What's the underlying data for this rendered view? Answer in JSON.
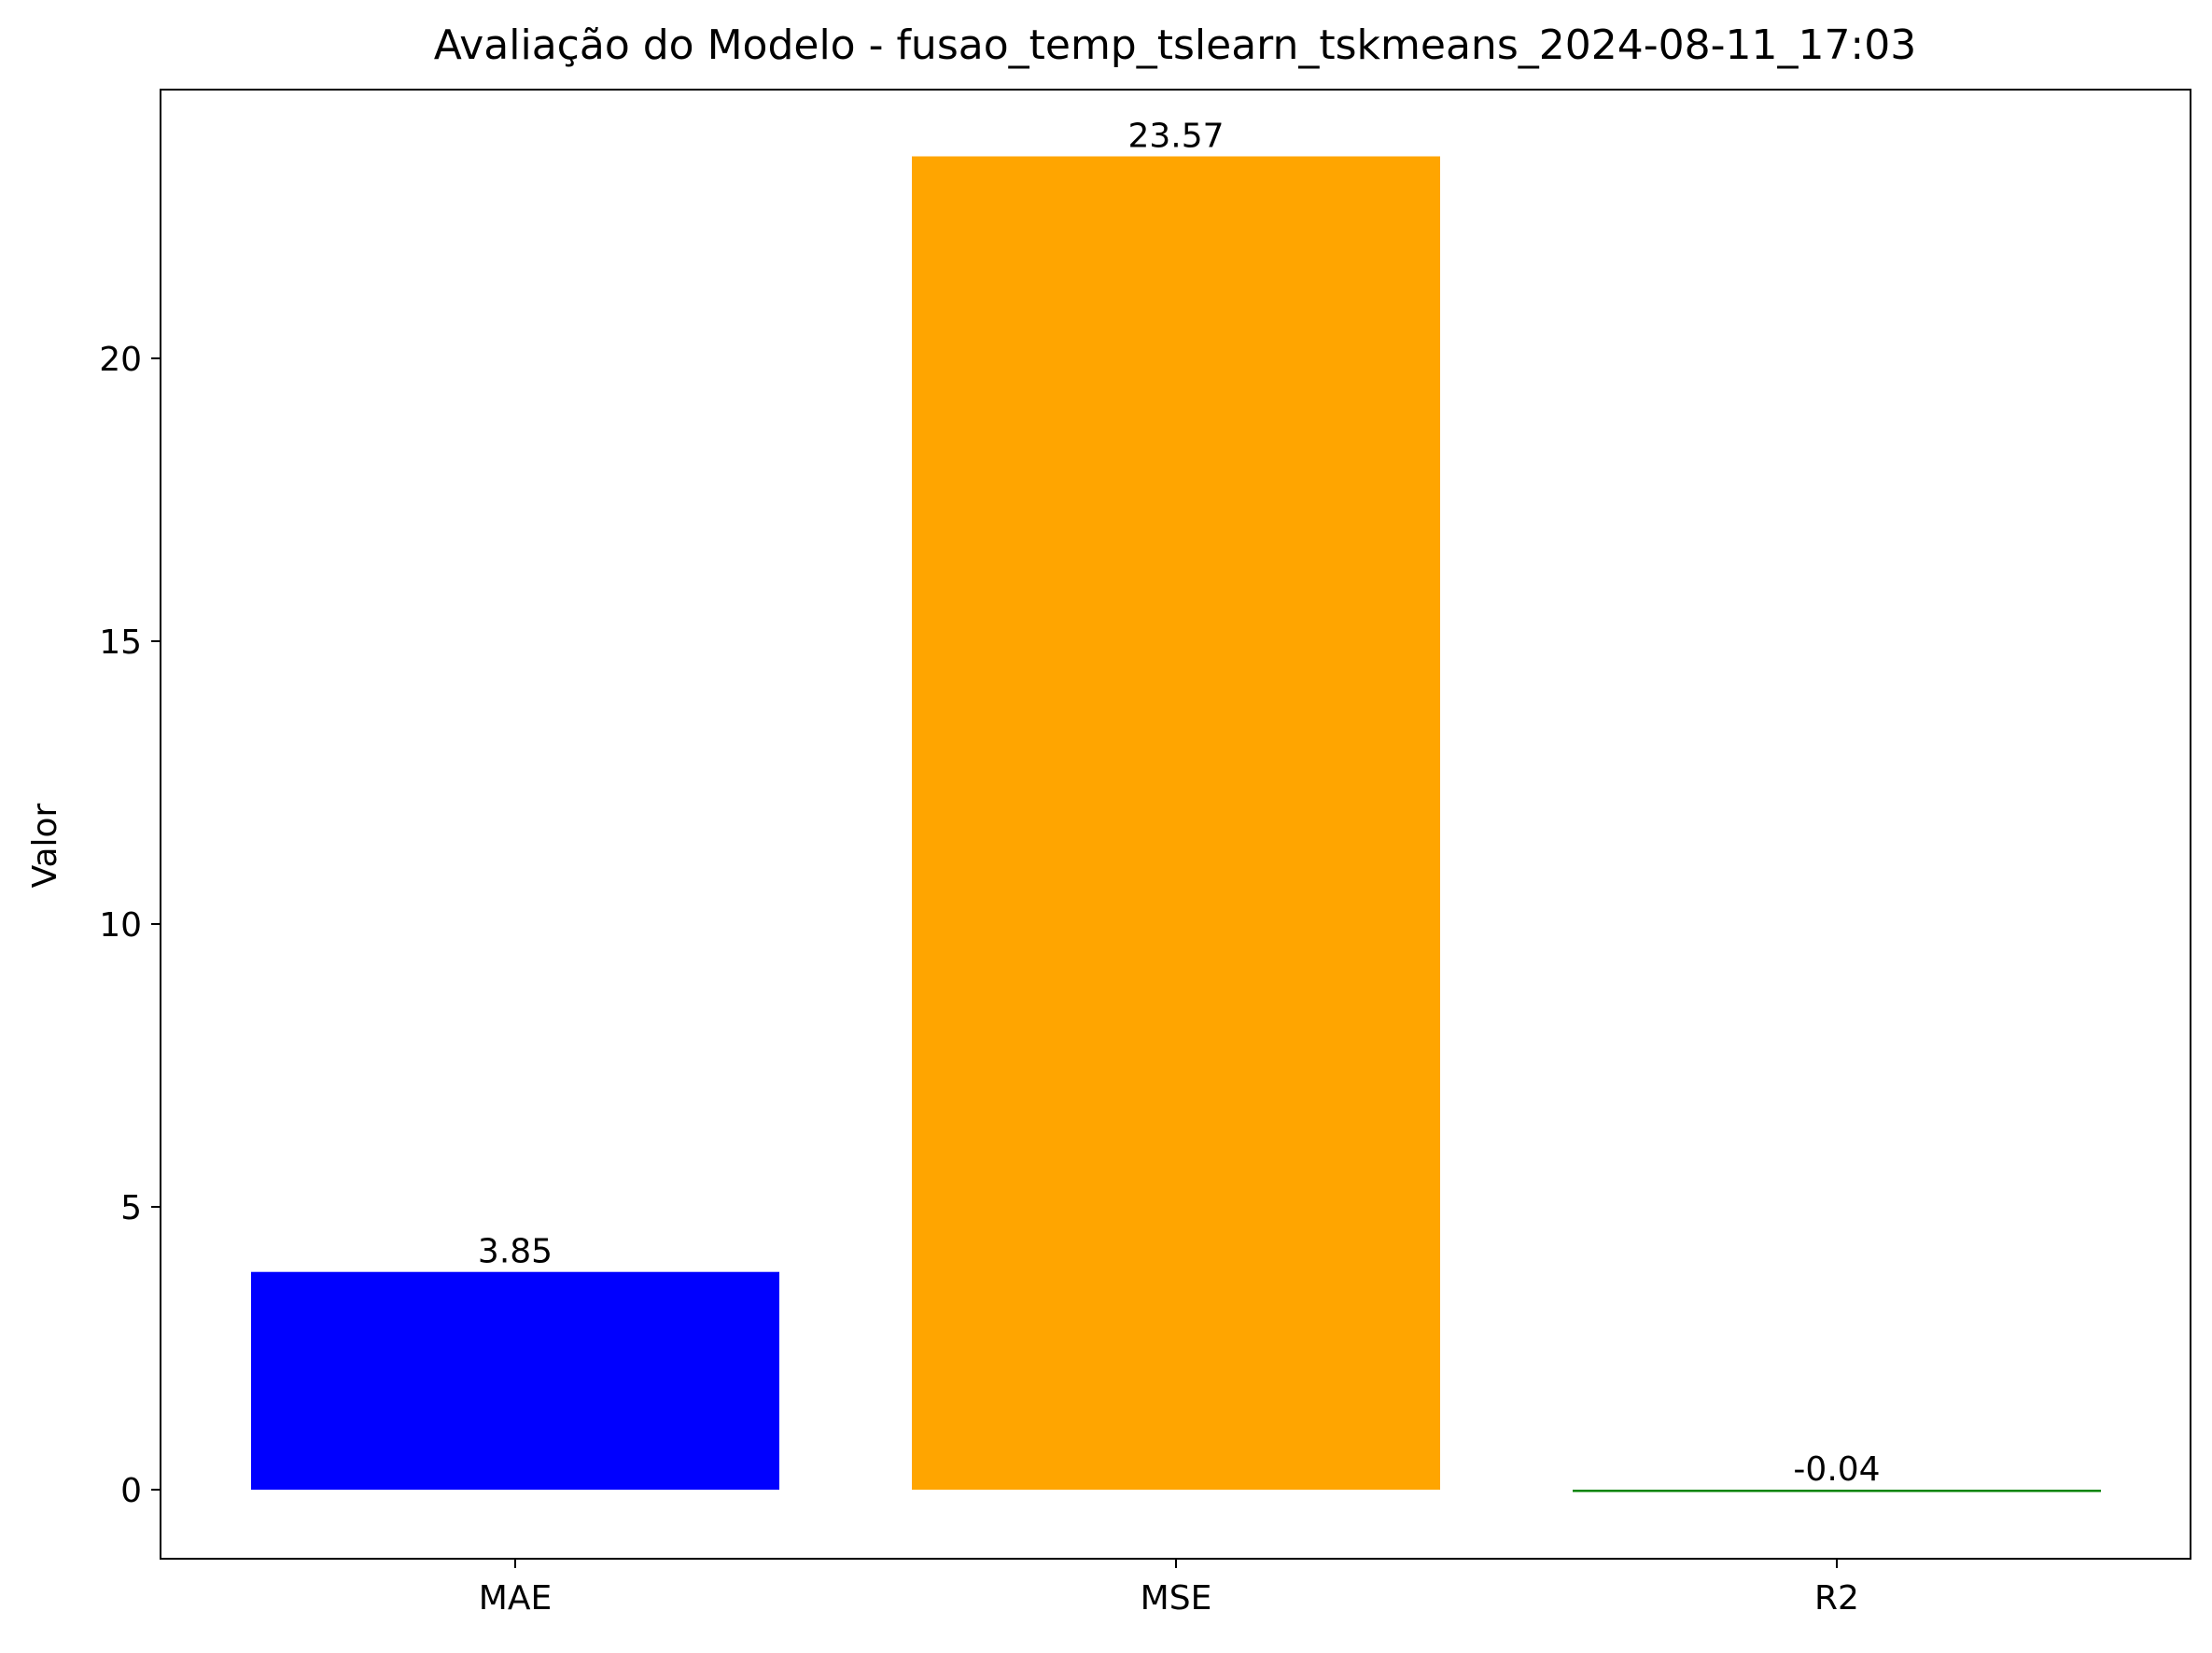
{
  "chart_data": {
    "type": "bar",
    "title": "Avaliação do Modelo - fusao_temp_tslearn_tskmeans_2024-08-11_17:03",
    "xlabel": "",
    "ylabel": "Valor",
    "categories": [
      "MAE",
      "MSE",
      "R2"
    ],
    "values": [
      3.85,
      23.57,
      -0.04
    ],
    "value_labels": [
      "3.85",
      "23.57",
      "-0.04"
    ],
    "colors": [
      "#0000ff",
      "#ffa500",
      "#008000"
    ],
    "ylim": [
      -1.22,
      24.75
    ],
    "yticks": [
      0,
      5,
      10,
      15,
      20
    ],
    "ytick_labels": [
      "0",
      "5",
      "10",
      "15",
      "20"
    ],
    "grid": false,
    "legend": false
  }
}
